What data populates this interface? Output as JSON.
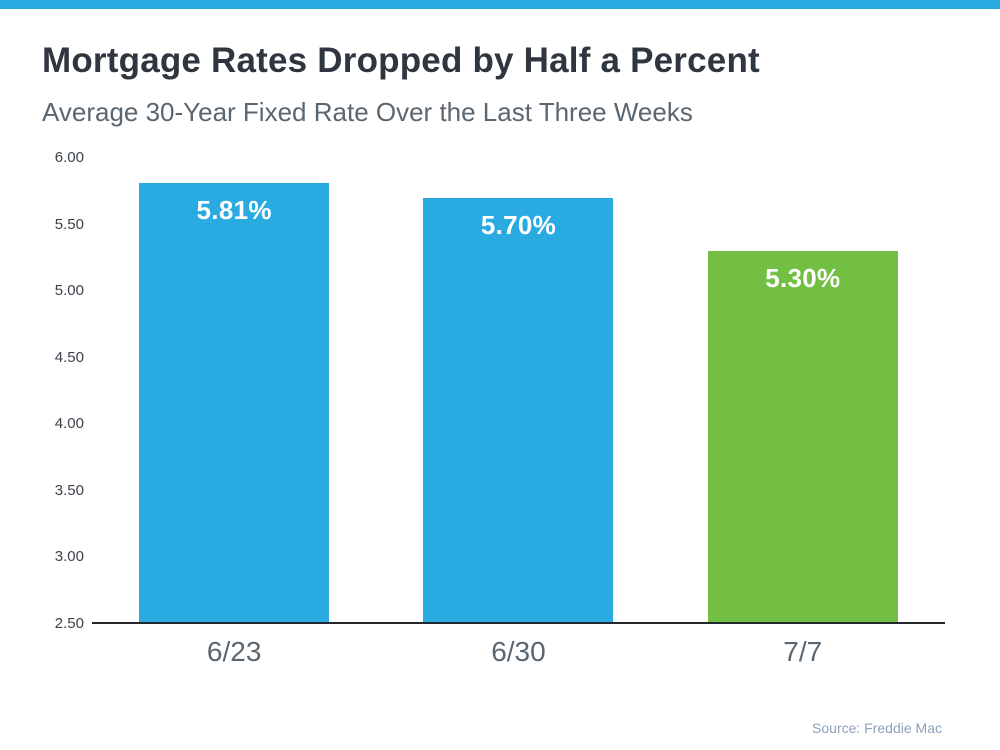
{
  "page": {
    "accent_color": "#29abe2"
  },
  "header": {
    "title": "Mortgage Rates Dropped by Half a Percent",
    "subtitle": "Average 30-Year Fixed Rate Over the Last Three Weeks"
  },
  "chart_data": {
    "type": "bar",
    "title": "Mortgage Rates Dropped by Half a Percent",
    "subtitle": "Average 30-Year Fixed Rate Over the Last Three Weeks",
    "categories": [
      "6/23",
      "6/30",
      "7/7"
    ],
    "values": [
      5.81,
      5.7,
      5.3
    ],
    "value_labels": [
      "5.81%",
      "5.70%",
      "5.30%"
    ],
    "bar_colors": [
      "#29abe2",
      "#29abe2",
      "#72bf44"
    ],
    "xlabel": "",
    "ylabel": "",
    "ylim": [
      2.5,
      6.0
    ],
    "yticks": [
      "6.00",
      "5.50",
      "5.00",
      "4.50",
      "4.00",
      "3.50",
      "3.00",
      "2.50"
    ],
    "grid": false,
    "legend_position": "none"
  },
  "footer": {
    "source": "Source: Freddie Mac"
  }
}
